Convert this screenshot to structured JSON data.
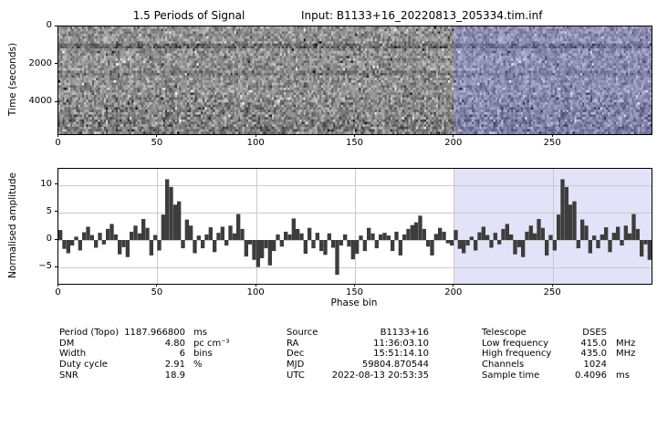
{
  "header": {
    "title": "1.5 Periods of Signal",
    "input_label": "Input:  B1133+16_20220813_205334.tim.inf"
  },
  "waterfall": {
    "ylabel": "Time (seconds)",
    "ytick_labels": [
      "0",
      "2000",
      "4000"
    ],
    "ytick_values": [
      0,
      2000,
      4000
    ],
    "xtick_labels": [
      "0",
      "50",
      "100",
      "150",
      "200",
      "250"
    ],
    "xtick_values": [
      0,
      50,
      100,
      150,
      200,
      250
    ]
  },
  "profile": {
    "ylabel": "Normalised amplitude",
    "xlabel": "Phase bin",
    "ytick_labels": [
      "10",
      "5",
      "0",
      "−5"
    ],
    "ytick_values": [
      10,
      5,
      0,
      -5
    ],
    "xtick_labels": [
      "0",
      "50",
      "100",
      "150",
      "200",
      "250"
    ],
    "xtick_values": [
      0,
      50,
      100,
      150,
      200,
      250
    ]
  },
  "chart_data": [
    {
      "type": "heatmap",
      "title": "1.5 Periods of Signal",
      "ylabel": "Time (seconds)",
      "xlim_bins": [
        0,
        300
      ],
      "ylim_seconds": [
        0,
        5690
      ],
      "ytick_values": [
        0,
        2000,
        4000
      ],
      "xtick_values": [
        0,
        50,
        100,
        150,
        200,
        250
      ],
      "content": "grayscale random-noise intensity vs time and phase bin; bins 200-299 repeat bins 0-99 (1.5 periods of a 200-bin fold); faint dark horizontal band near t≈900 s and darker texture below t≈3800 s; faint dark vertical smudge near the pulse phase (bin ≈55 and ≈255)",
      "shaded_region_bins": [
        200,
        300
      ],
      "noise_seed": 20220813,
      "grid": false
    },
    {
      "type": "bar",
      "xlabel": "Phase bin",
      "ylabel": "Normalised amplitude",
      "xlim": [
        0,
        300
      ],
      "ylim": [
        -7.9,
        12.9
      ],
      "xtick_values": [
        0,
        50,
        100,
        150,
        200,
        250
      ],
      "ytick_values": [
        10,
        5,
        0,
        -5
      ],
      "grid": true,
      "bin_width": 2,
      "repeat_note": "display covers 1.5 periods: bins 200-299 repeat values of bins 0-99",
      "shaded_region_bins": [
        200,
        300
      ],
      "peak": {
        "bin": 55,
        "value": 11.0
      },
      "values_one_period": [
        1.8,
        -1.6,
        -2.4,
        -1.0,
        0.6,
        -1.9,
        1.4,
        2.4,
        0.9,
        -1.4,
        1.3,
        -0.8,
        2.0,
        2.9,
        1.0,
        -2.6,
        -1.3,
        -3.1,
        1.5,
        2.6,
        1.2,
        3.8,
        2.2,
        -2.8,
        0.9,
        -1.9,
        4.6,
        11.0,
        9.6,
        6.4,
        7.0,
        -1.5,
        3.7,
        2.6,
        -2.4,
        0.8,
        -1.5,
        1.0,
        2.3,
        -2.2,
        1.3,
        2.4,
        -1.0,
        2.6,
        1.2,
        4.7,
        2.0,
        -3.0,
        -0.8,
        -3.6,
        -4.9,
        -3.3,
        -1.5,
        -4.6,
        -2.0,
        1.0,
        -1.2,
        1.5,
        1.0,
        3.9,
        2.0,
        1.2,
        -2.5,
        2.2,
        -1.5,
        1.3,
        -2.0,
        -2.7,
        1.2,
        -1.4,
        -6.3,
        -1.0,
        1.0,
        -1.2,
        -3.5,
        -2.5,
        0.8,
        -2.0,
        2.2,
        1.2,
        -1.5,
        1.0,
        1.3,
        0.8,
        -2.0,
        1.5,
        -2.8,
        1.0,
        2.0,
        2.7,
        3.2,
        4.4,
        2.0,
        -1.2,
        -2.8,
        1.1,
        2.2,
        1.5,
        -0.6,
        -1.0
      ]
    }
  ],
  "table": {
    "columns": [
      {
        "rows": [
          {
            "label": "Period (Topo)",
            "value": "1187.966800",
            "unit": "ms"
          },
          {
            "label": "DM",
            "value": "4.80",
            "unit": "pc cm⁻³"
          },
          {
            "label": "Width",
            "value": "6",
            "unit": "bins"
          },
          {
            "label": "Duty cycle",
            "value": "2.91",
            "unit": "%"
          },
          {
            "label": "SNR",
            "value": "18.9",
            "unit": ""
          }
        ]
      },
      {
        "rows": [
          {
            "label": "Source",
            "value": "B1133+16",
            "unit": ""
          },
          {
            "label": "RA",
            "value": "11:36:03.10",
            "unit": ""
          },
          {
            "label": "Dec",
            "value": "15:51:14.10",
            "unit": ""
          },
          {
            "label": "MJD",
            "value": "59804.870544",
            "unit": ""
          },
          {
            "label": "UTC",
            "value": "2022-08-13 20:53:35",
            "unit": ""
          }
        ]
      },
      {
        "rows": [
          {
            "label": "Telescope",
            "value": "DSES",
            "unit": ""
          },
          {
            "label": "Low frequency",
            "value": "415.0",
            "unit": "MHz"
          },
          {
            "label": "High frequency",
            "value": "435.0",
            "unit": "MHz"
          },
          {
            "label": "Channels",
            "value": "1024",
            "unit": ""
          },
          {
            "label": "Sample time",
            "value": "0.4096",
            "unit": "ms"
          }
        ]
      }
    ]
  },
  "colors": {
    "bar": "#3d3d3d",
    "grid": "#cacaca",
    "shade": "#e2e2f8",
    "axis": "#000000",
    "background": "#ffffff"
  }
}
